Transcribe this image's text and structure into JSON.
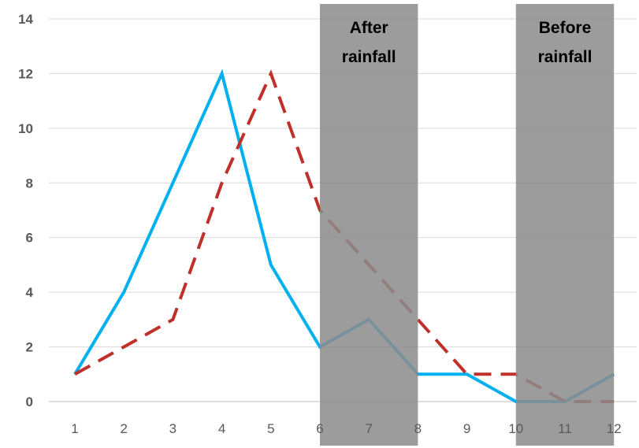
{
  "chart_data": {
    "type": "line",
    "title": "",
    "xlabel": "",
    "ylabel": "",
    "x": [
      1,
      2,
      3,
      4,
      5,
      6,
      7,
      8,
      9,
      10,
      11,
      12
    ],
    "ylim": [
      0,
      14
    ],
    "yticks": [
      0,
      2,
      4,
      6,
      8,
      10,
      12,
      14
    ],
    "grid": true,
    "legend": "none",
    "series": [
      {
        "values": [
          1,
          4,
          8,
          12,
          5,
          2,
          3,
          1,
          1,
          0,
          0,
          1
        ],
        "color": "#00b0f0",
        "color_in_band": "#1f7fa3",
        "style": "solid"
      },
      {
        "values": [
          1,
          2,
          3,
          8,
          12,
          7,
          5,
          3,
          1,
          1,
          0,
          0
        ],
        "color": "#c0302a",
        "style": "dashed"
      }
    ],
    "bands": [
      {
        "label_line1": "After",
        "label_line2": "rainfall",
        "x_start": 6,
        "x_end": 8
      },
      {
        "label_line1": "Before",
        "label_line2": "rainfall",
        "x_start": 10,
        "x_end": 12
      }
    ],
    "band_color": "#8c8c8c",
    "grid_color": "#d9d9d9",
    "tick_color": "#595959"
  }
}
